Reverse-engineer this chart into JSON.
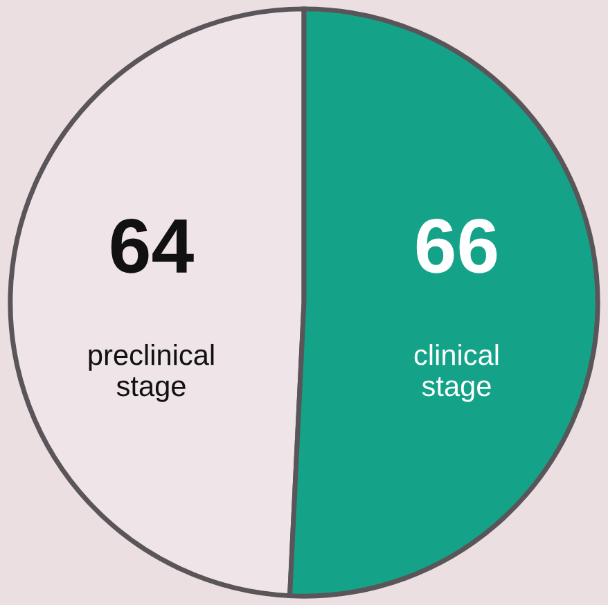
{
  "chart_data": {
    "type": "pie",
    "categories": [
      "preclinical\nstage",
      "clinical\nstage"
    ],
    "values": [
      64,
      66
    ],
    "colors": [
      "#efe4e7",
      "#14a388"
    ],
    "data_labels": true,
    "legend": false
  }
}
